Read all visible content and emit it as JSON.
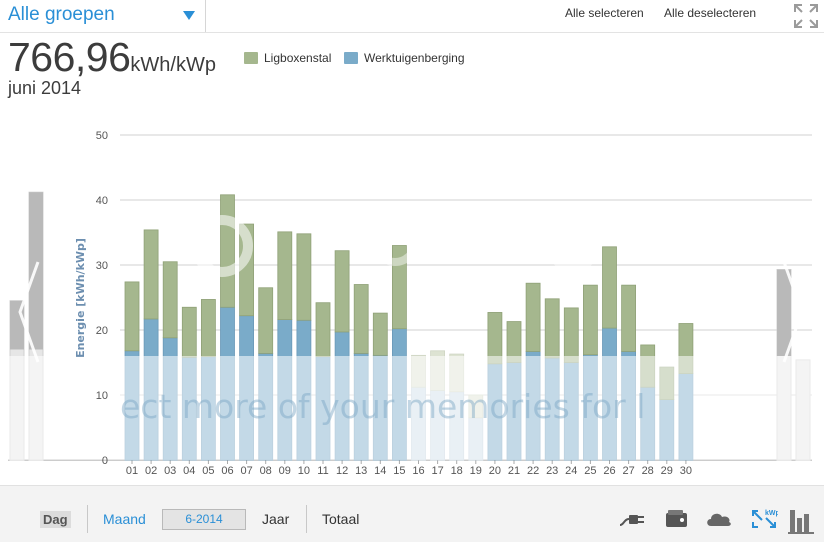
{
  "header": {
    "group_select": "Alle groepen",
    "select_all": "Alle selecteren",
    "deselect_all": "Alle deselecteren"
  },
  "summary": {
    "value": "766,96",
    "unit": "kWh/kWp",
    "period": "juni 2014"
  },
  "legend": [
    {
      "label": "Ligboxenstal",
      "color": "#a5b78e"
    },
    {
      "label": "Werktuigenberging",
      "color": "#7aabc9"
    }
  ],
  "watermark": "ect more of your memories for l",
  "footer": {
    "day": "Dag",
    "month": "Maand",
    "month_value": "6-2014",
    "year": "Jaar",
    "total": "Totaal"
  },
  "icons": [
    "plug-icon",
    "wallet-icon",
    "co2-icon",
    "kwp-icon",
    "bar-chart-icon"
  ],
  "chart_data": {
    "type": "bar",
    "stacked": true,
    "ylabel": "Energie [kWh/kWp]",
    "ylim": [
      0,
      50
    ],
    "yticks": [
      0,
      10,
      20,
      30,
      40,
      50
    ],
    "grid": true,
    "categories": [
      "01",
      "02",
      "03",
      "04",
      "05",
      "06",
      "07",
      "08",
      "09",
      "10",
      "11",
      "12",
      "13",
      "14",
      "15",
      "16",
      "17",
      "18",
      "19",
      "20",
      "21",
      "22",
      "23",
      "24",
      "25",
      "26",
      "27",
      "28",
      "29",
      "30"
    ],
    "series": [
      {
        "name": "Werktuigenberging",
        "color": "#7aabc9",
        "values": [
          16.8,
          21.7,
          18.8,
          15.8,
          15.9,
          23.5,
          22.2,
          16.4,
          21.6,
          21.5,
          15.9,
          19.7,
          16.4,
          16.1,
          20.2,
          11.2,
          10.7,
          10.5,
          6.5,
          14.8,
          15.0,
          16.7,
          15.7,
          15.0,
          16.2,
          20.3,
          16.7,
          11.2,
          9.3,
          13.3
        ]
      },
      {
        "name": "Ligboxenstal",
        "color": "#a5b78e",
        "values": [
          10.6,
          13.7,
          11.7,
          7.7,
          8.8,
          17.3,
          14.1,
          10.1,
          13.5,
          13.3,
          8.3,
          12.5,
          10.6,
          6.5,
          12.8,
          4.9,
          6.1,
          5.8,
          3.5,
          7.9,
          6.3,
          10.5,
          9.1,
          8.4,
          10.7,
          12.5,
          10.2,
          6.5,
          5.0,
          7.7
        ]
      }
    ],
    "faded_days": [
      "16",
      "17",
      "18",
      "19"
    ],
    "prev_month_bars": [
      24.5,
      41.2
    ],
    "next_month_bars": [
      29.3,
      15.4
    ]
  }
}
